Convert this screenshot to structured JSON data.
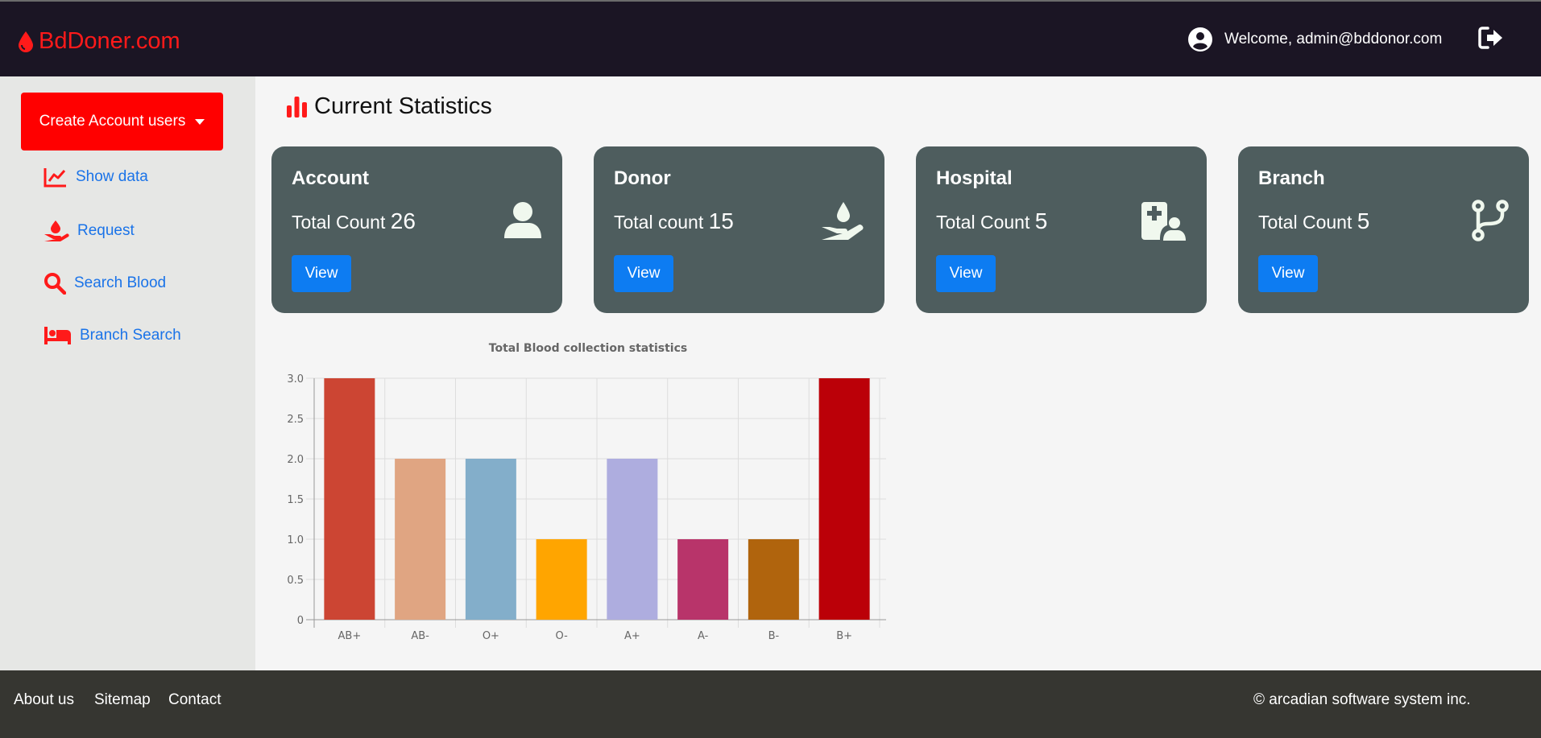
{
  "header": {
    "brand": "BdDoner.com",
    "welcome": "Welcome, admin@bddonor.com"
  },
  "sidebar": {
    "create_label": "Create Account users",
    "items": [
      {
        "label": "Show data",
        "icon": "line-chart-icon"
      },
      {
        "label": "Request",
        "icon": "hand-blood-icon"
      },
      {
        "label": "Search Blood",
        "icon": "search-icon"
      },
      {
        "label": "Branch Search",
        "icon": "bed-icon"
      }
    ]
  },
  "main": {
    "title": "Current Statistics",
    "cards": [
      {
        "title": "Account",
        "count_label": "Total Count",
        "count": "26",
        "button": "View",
        "icon": "user-icon"
      },
      {
        "title": "Donor",
        "count_label": "Total count",
        "count": "15",
        "button": "View",
        "icon": "hand-holding-droplet-icon"
      },
      {
        "title": "Hospital",
        "count_label": "Total Count",
        "count": "5",
        "button": "View",
        "icon": "hospital-user-icon"
      },
      {
        "title": "Branch",
        "count_label": "Total Count",
        "count": "5",
        "button": "View",
        "icon": "code-branch-icon"
      }
    ]
  },
  "colors": {
    "brand": "#ff1a1a",
    "header_bg": "#1b1524",
    "card_bg": "#4e5d5e",
    "button_blue": "#0d7cf2",
    "link_blue": "#1a73e8",
    "footer_bg": "#363631"
  },
  "chart_data": {
    "type": "bar",
    "title": "Total Blood collection statistics",
    "categories": [
      "AB+",
      "AB-",
      "O+",
      "O-",
      "A+",
      "A-",
      "B-",
      "B+"
    ],
    "values": [
      3,
      2,
      2,
      1,
      2,
      1,
      1,
      3
    ],
    "colors": [
      "#cc4533",
      "#e0a582",
      "#83aeca",
      "#ffa500",
      "#aeaddf",
      "#b8346a",
      "#b0640d",
      "#bb0008"
    ],
    "yticks": [
      "0",
      "0.5",
      "1.0",
      "1.5",
      "2.0",
      "2.5",
      "3.0"
    ],
    "ylim": [
      0,
      3
    ],
    "xlabel": "",
    "ylabel": ""
  },
  "footer": {
    "links": [
      "About us",
      "Sitemap",
      "Contact"
    ],
    "copyright": "© arcadian software system inc."
  }
}
